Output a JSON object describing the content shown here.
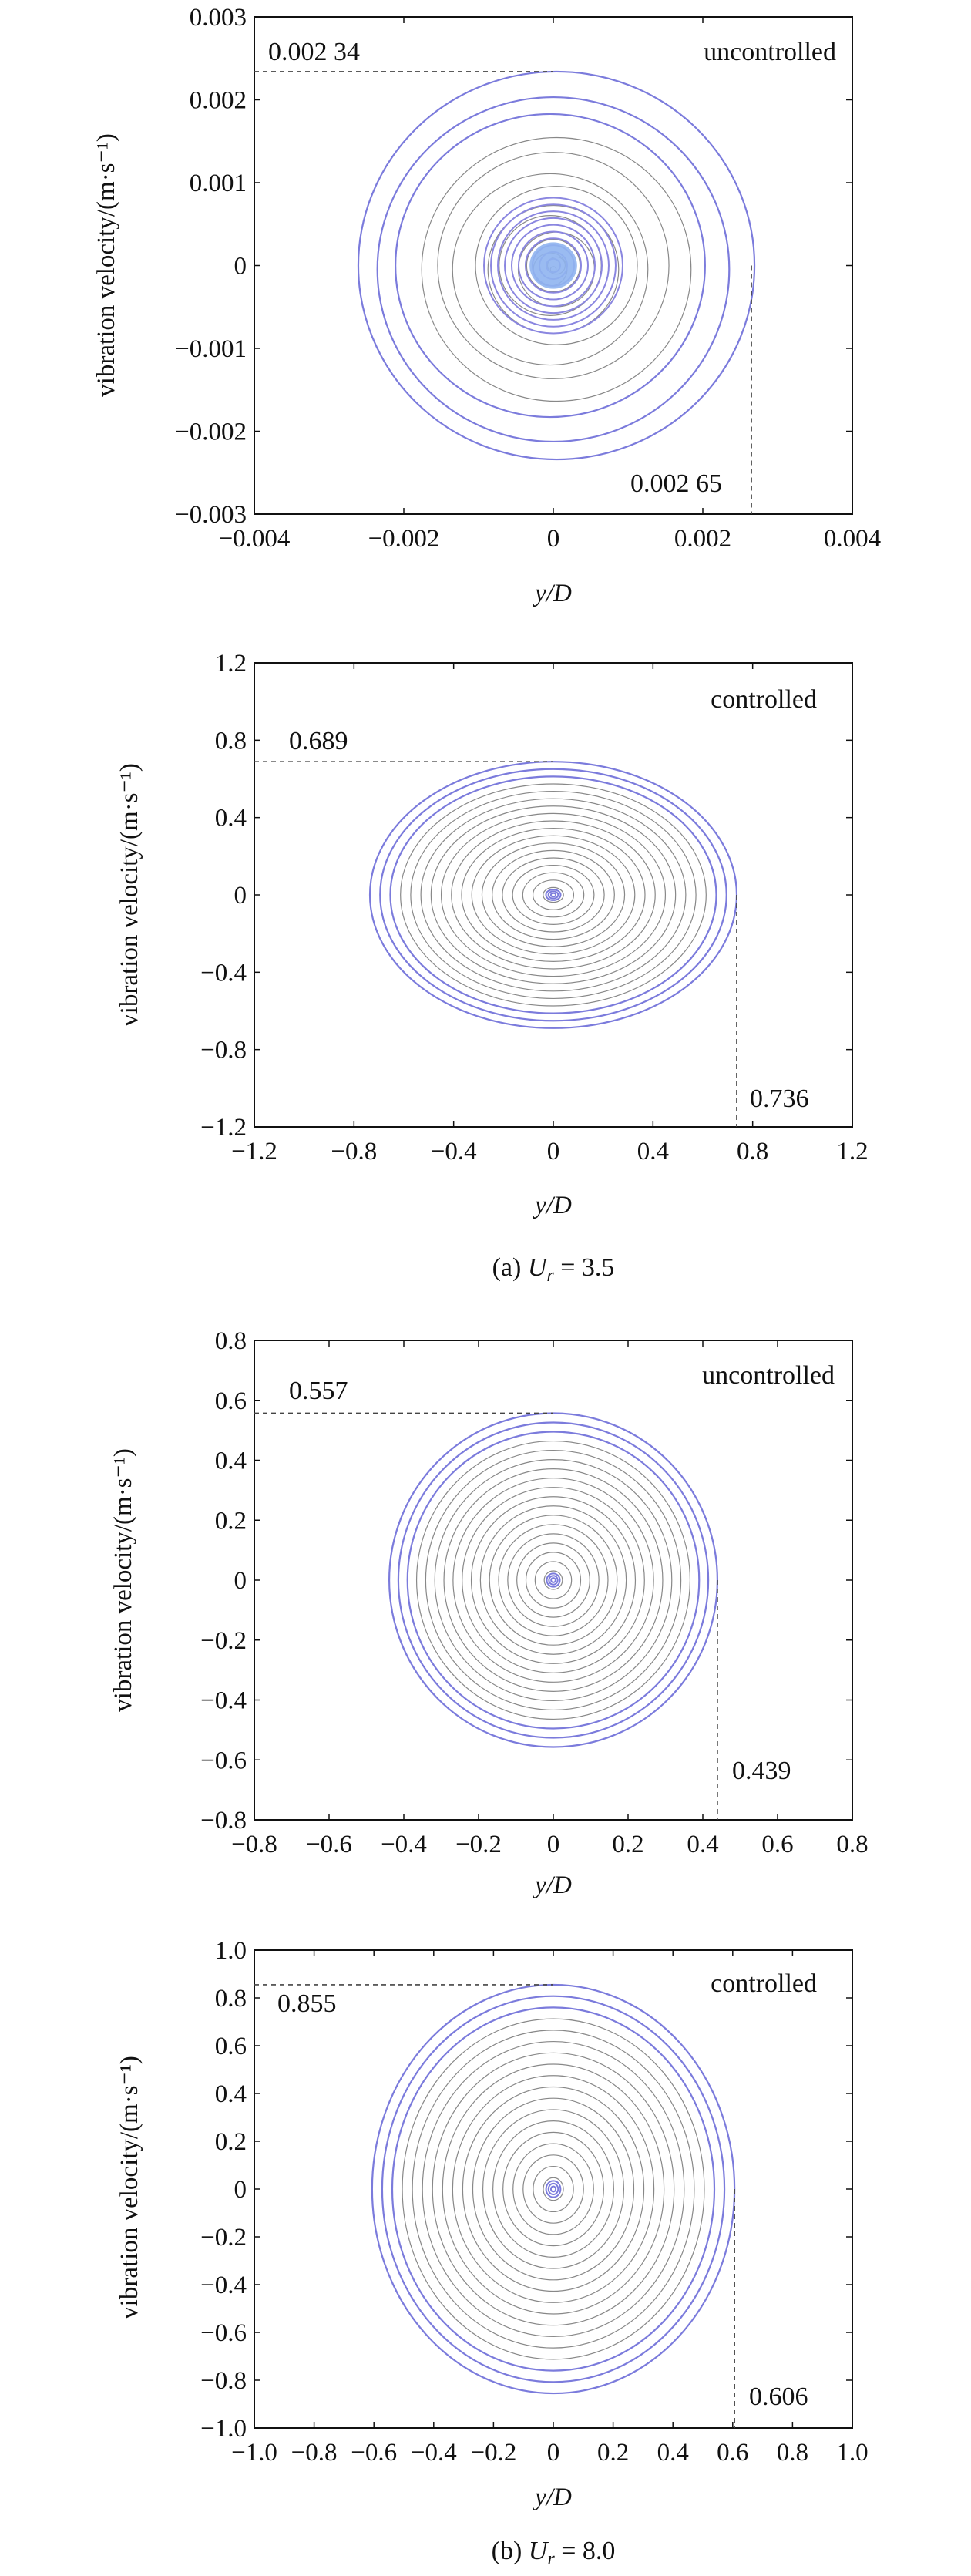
{
  "chart_data": [
    {
      "type": "line",
      "panel": "(a) top",
      "status_label": "uncontrolled",
      "xlabel": "y/D",
      "ylabel": "vibration velocity/(m·s⁻¹)",
      "xlim": [
        -0.004,
        0.004
      ],
      "ylim": [
        -0.003,
        0.003
      ],
      "x_ticks": [
        "−0.004",
        "−0.002",
        "0",
        "0.002",
        "0.004"
      ],
      "y_ticks": [
        "0.003",
        "0.002",
        "0.001",
        "0",
        "−0.001",
        "−0.002",
        "−0.003"
      ],
      "max_velocity_label": "0.002 34",
      "max_velocity": 0.00234,
      "max_displacement_label": "0.002 65",
      "max_displacement": 0.00265
    },
    {
      "type": "line",
      "panel": "(a) bottom",
      "status_label": "controlled",
      "xlabel": "y/D",
      "ylabel": "vibration velocity/(m·s⁻¹)",
      "xlim": [
        -1.2,
        1.2
      ],
      "ylim": [
        -1.2,
        1.2
      ],
      "x_ticks": [
        "−1.2",
        "−0.8",
        "−0.4",
        "0",
        "0.4",
        "0.8",
        "1.2"
      ],
      "y_ticks": [
        "1.2",
        "0.8",
        "0.4",
        "0",
        "−0.4",
        "−0.8",
        "−1.2"
      ],
      "max_velocity_label": "0.689",
      "max_velocity": 0.689,
      "max_displacement_label": "0.736",
      "max_displacement": 0.736
    },
    {
      "type": "line",
      "panel": "(b) top",
      "status_label": "uncontrolled",
      "xlabel": "y/D",
      "ylabel": "vibration velocity/(m·s⁻¹)",
      "xlim": [
        -0.8,
        0.8
      ],
      "ylim": [
        -0.8,
        0.8
      ],
      "x_ticks": [
        "−0.8",
        "−0.6",
        "−0.4",
        "−0.2",
        "0",
        "0.2",
        "0.4",
        "0.6",
        "0.8"
      ],
      "y_ticks": [
        "0.8",
        "0.6",
        "0.4",
        "0.2",
        "0",
        "−0.2",
        "−0.4",
        "−0.6",
        "−0.8"
      ],
      "max_velocity_label": "0.557",
      "max_velocity": 0.557,
      "max_displacement_label": "0.439",
      "max_displacement": 0.439
    },
    {
      "type": "line",
      "panel": "(b) bottom",
      "status_label": "controlled",
      "xlabel": "y/D",
      "ylabel": "vibration velocity/(m·s⁻¹)",
      "xlim": [
        -1.0,
        1.0
      ],
      "ylim": [
        -1.0,
        1.0
      ],
      "x_ticks": [
        "−1.0",
        "−0.8",
        "−0.6",
        "−0.4",
        "−0.2",
        "0",
        "0.2",
        "0.4",
        "0.6",
        "0.8",
        "1.0"
      ],
      "y_ticks": [
        "1.0",
        "0.8",
        "0.6",
        "0.4",
        "0.2",
        "0",
        "−0.2",
        "−0.4",
        "−0.6",
        "−0.8",
        "−1.0"
      ],
      "max_velocity_label": "0.855",
      "max_velocity": 0.855,
      "max_displacement_label": "0.606",
      "max_displacement": 0.606
    }
  ],
  "captions": {
    "a": {
      "prefix": "(a) ",
      "var": "U",
      "sub": "r",
      "suffix": " = 3.5"
    },
    "b": {
      "prefix": "(b) ",
      "var": "U",
      "sub": "r",
      "suffix": " = 8.0"
    }
  },
  "colors": {
    "trajectory": "#888888",
    "trajectory_outer": "#7b7bdc",
    "core": "#8fb4f0",
    "dashed": "#444444"
  }
}
